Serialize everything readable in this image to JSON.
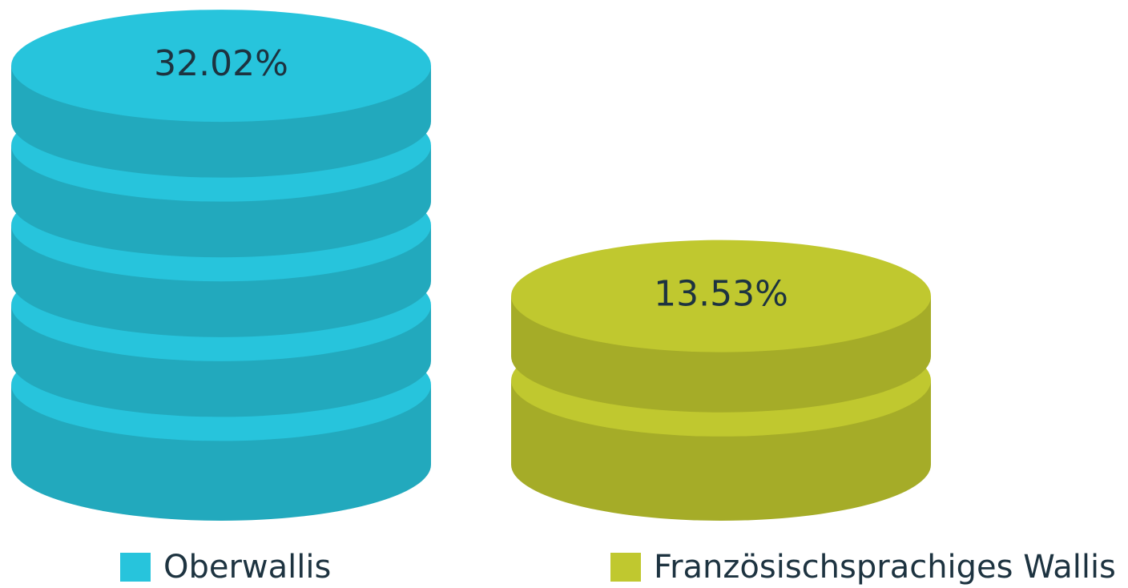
{
  "chart_data": {
    "type": "coin-stack",
    "categories": [
      "Oberwallis",
      "Französischsprachiges Wallis"
    ],
    "values": [
      32.02,
      13.53
    ],
    "value_labels": [
      "32.02%",
      "13.53%"
    ],
    "colors": [
      "#27c4dc",
      "#c0c82f"
    ]
  }
}
